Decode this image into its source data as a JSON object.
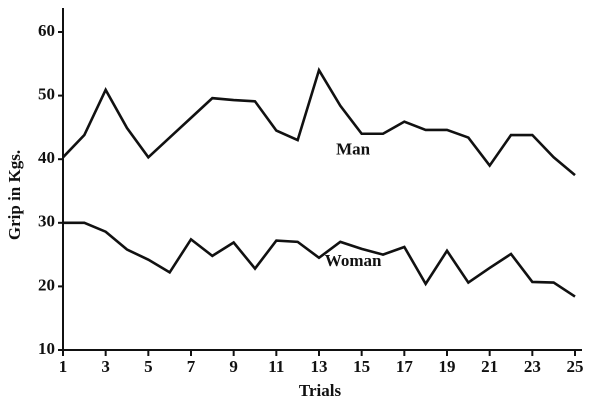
{
  "chart_data": {
    "type": "line",
    "x_label": "Trials",
    "y_label": "Grip in Kgs.",
    "x": [
      1,
      2,
      3,
      4,
      5,
      6,
      7,
      8,
      9,
      10,
      11,
      12,
      13,
      14,
      15,
      16,
      17,
      18,
      19,
      20,
      21,
      22,
      23,
      24,
      25
    ],
    "series": [
      {
        "name": "Man",
        "color": "#111111",
        "values": [
          40.3,
          43.8,
          50.9,
          44.9,
          40.3,
          43.4,
          46.5,
          49.6,
          49.3,
          49.1,
          44.5,
          43,
          54,
          48.4,
          44,
          44,
          45.9,
          44.6,
          44.6,
          43.4,
          39,
          43.8,
          43.8,
          40.3,
          37.5
        ]
      },
      {
        "name": "Woman",
        "color": "#111111",
        "values": [
          30,
          30,
          28.6,
          25.8,
          24.2,
          22.2,
          27.4,
          24.8,
          26.9,
          22.8,
          27.2,
          27,
          24.5,
          27,
          25.9,
          25,
          26.2,
          20.4,
          25.6,
          20.6,
          22.9,
          25.1,
          20.7,
          20.6,
          18.4
        ]
      }
    ],
    "xlim": [
      1,
      25
    ],
    "xticks": [
      1,
      3,
      5,
      7,
      9,
      11,
      13,
      15,
      17,
      19,
      21,
      23,
      25
    ],
    "ylim": [
      10,
      60
    ],
    "yticks": [
      10,
      20,
      30,
      40,
      50,
      60
    ],
    "grid": false
  }
}
